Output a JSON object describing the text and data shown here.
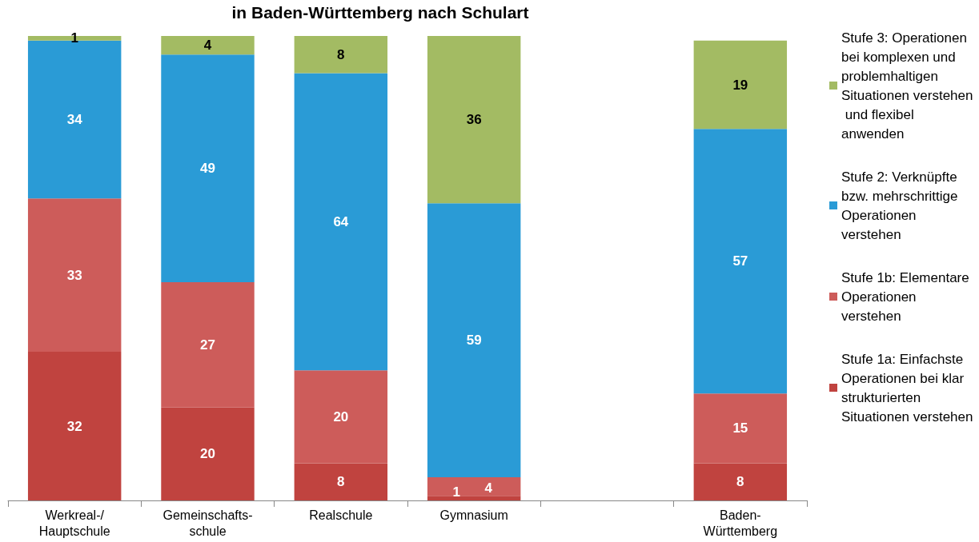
{
  "chart_data": {
    "type": "bar",
    "title": "in Baden-Württemberg nach Schulart",
    "categories": [
      "Werkreal-/\nHauptschule",
      "Gemeinschafts-\nschule",
      "Realschule",
      "Gymnasium",
      null,
      "Baden-\nWürttemberg"
    ],
    "stacked": true,
    "data_labels": true,
    "legend": "right",
    "tick_labels": "x",
    "ylim": [
      0,
      100
    ],
    "series": [
      {
        "name": "Stufe 1a: Einfachste Operationen bei klar strukturierten Situationen verstehen",
        "color": "#c0433f",
        "values": [
          32,
          20,
          8,
          1,
          null,
          8
        ]
      },
      {
        "name": "Stufe 1b: Elementare Operationen verstehen",
        "color": "#cd5c5a",
        "values": [
          33,
          27,
          20,
          4,
          null,
          15
        ]
      },
      {
        "name": "Stufe 2: Verknüpfte bzw. mehrschrittige Operationen verstehen",
        "color": "#2a9bd6",
        "values": [
          34,
          49,
          64,
          59,
          null,
          57
        ]
      },
      {
        "name": "Stufe 3: Operationen bei komplexen und problemhaltigen Situationen verstehen und flexibel anwenden",
        "color": "#a3bb63",
        "values": [
          1,
          4,
          8,
          36,
          null,
          19
        ]
      }
    ]
  }
}
